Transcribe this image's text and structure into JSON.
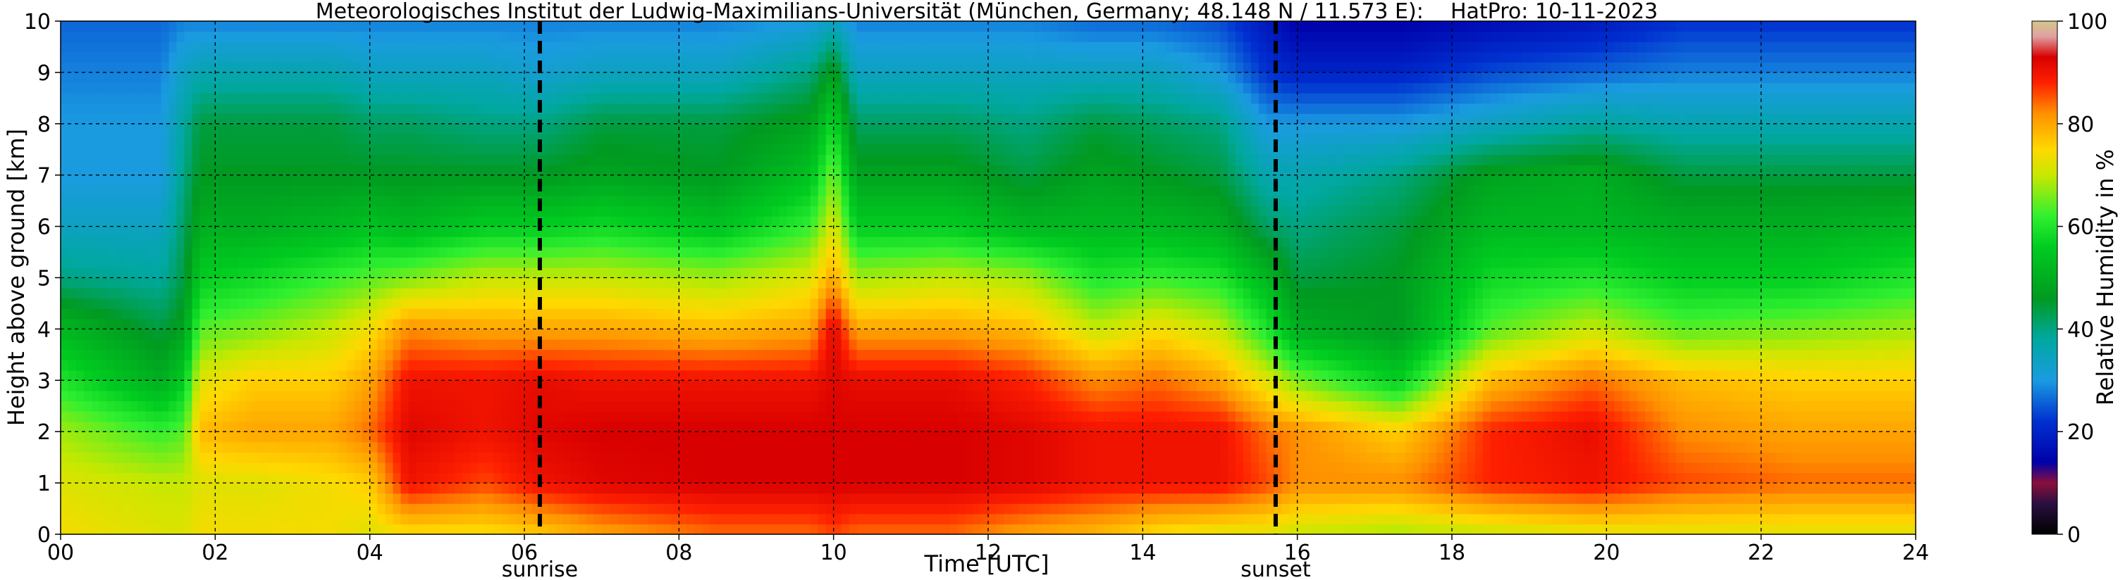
{
  "chart_data": {
    "type": "heatmap",
    "title": "Meteorologisches Institut der Ludwig-Maximilians-Universität (München, Germany; 48.148 N / 11.573 E):    HatPro: 10-11-2023",
    "xlabel": "Time [UTC]",
    "ylabel": "Height above ground [km]",
    "xlim": [
      0,
      24
    ],
    "ylim": [
      0,
      10
    ],
    "x_ticks": [
      "00",
      "02",
      "04",
      "06",
      "08",
      "10",
      "12",
      "14",
      "16",
      "18",
      "20",
      "22",
      "24"
    ],
    "y_ticks": [
      "0",
      "1",
      "2",
      "3",
      "4",
      "5",
      "6",
      "7",
      "8",
      "9",
      "10"
    ],
    "grid": true,
    "colorbar": {
      "label": "Relative Humidity in %",
      "range": [
        0,
        100
      ],
      "ticks": [
        "0",
        "20",
        "40",
        "60",
        "80",
        "100"
      ],
      "colors": [
        {
          "v": 0,
          "c": "#000000"
        },
        {
          "v": 6,
          "c": "#2a0f40"
        },
        {
          "v": 10,
          "c": "#8a0f3c"
        },
        {
          "v": 14,
          "c": "#0000aa"
        },
        {
          "v": 22,
          "c": "#0030d0"
        },
        {
          "v": 30,
          "c": "#1a9be0"
        },
        {
          "v": 38,
          "c": "#00a8a0"
        },
        {
          "v": 46,
          "c": "#009a20"
        },
        {
          "v": 56,
          "c": "#00cc20"
        },
        {
          "v": 62,
          "c": "#30f030"
        },
        {
          "v": 70,
          "c": "#c8e800"
        },
        {
          "v": 75,
          "c": "#ffd800"
        },
        {
          "v": 82,
          "c": "#ff9000"
        },
        {
          "v": 88,
          "c": "#ff2000"
        },
        {
          "v": 93,
          "c": "#d80000"
        },
        {
          "v": 97,
          "c": "#e0a0a0"
        },
        {
          "v": 100,
          "c": "#d4c88a"
        }
      ]
    },
    "markers": [
      {
        "label": "sunrise",
        "x": 6.2
      },
      {
        "label": "sunset",
        "x": 15.72
      }
    ],
    "rh_profiles": [
      {
        "t": 0.0,
        "rh": [
          74,
          72,
          68,
          60,
          52,
          40,
          34,
          30,
          30,
          28,
          26
        ]
      },
      {
        "t": 1.3,
        "rh": [
          72,
          70,
          62,
          50,
          44,
          38,
          34,
          30,
          30,
          28,
          26
        ]
      },
      {
        "t": 1.6,
        "rh": [
          72,
          70,
          64,
          56,
          48,
          44,
          42,
          40,
          38,
          34,
          28
        ]
      },
      {
        "t": 1.8,
        "rh": [
          74,
          72,
          78,
          72,
          64,
          56,
          50,
          46,
          44,
          36,
          28
        ]
      },
      {
        "t": 2.5,
        "rh": [
          74,
          72,
          80,
          76,
          66,
          58,
          50,
          46,
          44,
          36,
          28
        ]
      },
      {
        "t": 3.5,
        "rh": [
          74,
          74,
          80,
          76,
          70,
          62,
          52,
          46,
          44,
          36,
          28
        ]
      },
      {
        "t": 4.0,
        "rh": [
          72,
          76,
          84,
          80,
          74,
          64,
          54,
          46,
          42,
          34,
          28
        ]
      },
      {
        "t": 4.5,
        "rh": [
          74,
          90,
          92,
          90,
          82,
          66,
          52,
          46,
          42,
          34,
          28
        ]
      },
      {
        "t": 5.5,
        "rh": [
          74,
          86,
          90,
          90,
          80,
          70,
          56,
          46,
          40,
          34,
          28
        ]
      },
      {
        "t": 6.2,
        "rh": [
          76,
          90,
          92,
          91,
          80,
          70,
          56,
          46,
          40,
          32,
          28
        ]
      },
      {
        "t": 7.0,
        "rh": [
          80,
          92,
          93,
          90,
          80,
          70,
          58,
          48,
          44,
          34,
          28
        ]
      },
      {
        "t": 8.5,
        "rh": [
          84,
          93,
          93,
          90,
          78,
          68,
          54,
          46,
          44,
          34,
          28
        ]
      },
      {
        "t": 9.7,
        "rh": [
          84,
          93,
          93,
          90,
          80,
          72,
          62,
          54,
          48,
          40,
          30
        ]
      },
      {
        "t": 10.0,
        "rh": [
          86,
          93,
          93,
          92,
          92,
          80,
          72,
          66,
          58,
          48,
          34
        ]
      },
      {
        "t": 10.3,
        "rh": [
          84,
          93,
          93,
          91,
          80,
          68,
          56,
          48,
          42,
          34,
          28
        ]
      },
      {
        "t": 11.5,
        "rh": [
          84,
          93,
          93,
          91,
          80,
          70,
          56,
          48,
          42,
          34,
          28
        ]
      },
      {
        "t": 12.5,
        "rh": [
          80,
          92,
          92,
          88,
          78,
          68,
          52,
          44,
          40,
          34,
          28
        ]
      },
      {
        "t": 13.4,
        "rh": [
          78,
          90,
          90,
          82,
          70,
          60,
          52,
          48,
          44,
          34,
          26
        ]
      },
      {
        "t": 14.2,
        "rh": [
          74,
          90,
          90,
          84,
          74,
          62,
          52,
          46,
          42,
          34,
          26
        ]
      },
      {
        "t": 15.0,
        "rh": [
          72,
          90,
          90,
          80,
          70,
          60,
          50,
          44,
          40,
          30,
          24
        ]
      },
      {
        "t": 15.6,
        "rh": [
          72,
          86,
          84,
          72,
          60,
          52,
          42,
          36,
          30,
          22,
          18
        ]
      },
      {
        "t": 16.0,
        "rh": [
          70,
          82,
          82,
          66,
          50,
          44,
          40,
          36,
          30,
          20,
          14
        ]
      },
      {
        "t": 17.3,
        "rh": [
          68,
          82,
          76,
          56,
          46,
          46,
          44,
          40,
          30,
          20,
          14
        ]
      },
      {
        "t": 18.5,
        "rh": [
          70,
          88,
          88,
          78,
          64,
          58,
          52,
          48,
          34,
          24,
          16
        ]
      },
      {
        "t": 19.8,
        "rh": [
          72,
          90,
          91,
          84,
          70,
          60,
          52,
          50,
          38,
          26,
          18
        ]
      },
      {
        "t": 21.0,
        "rh": [
          72,
          86,
          82,
          78,
          64,
          56,
          50,
          44,
          36,
          28,
          22
        ]
      },
      {
        "t": 22.5,
        "rh": [
          72,
          84,
          80,
          76,
          66,
          56,
          50,
          44,
          36,
          28,
          22
        ]
      },
      {
        "t": 24.0,
        "rh": [
          72,
          84,
          80,
          76,
          68,
          60,
          52,
          44,
          36,
          28,
          22
        ]
      }
    ]
  }
}
